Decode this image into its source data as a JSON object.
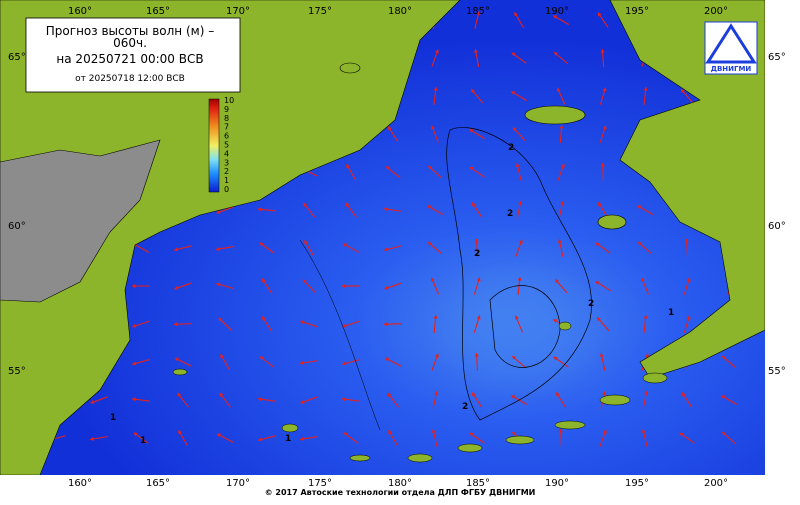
{
  "header": {
    "title": "Прогноз высоты волн (м) –",
    "title_cont": "060ч.",
    "valid": "на 20250721 00:00 ВСВ",
    "issued": "от 20250718 12:00 ВСВ"
  },
  "logo": {
    "text": "ДВНИГМИ"
  },
  "colorbar": {
    "labels": [
      10,
      9,
      8,
      7,
      6,
      5,
      4,
      3,
      2,
      1,
      0
    ]
  },
  "axes": {
    "lon_top": [
      "160°",
      "165°",
      "170°",
      "175°",
      "180°",
      "185°",
      "190°",
      "195°",
      "200°"
    ],
    "lon_bottom": [
      "160°",
      "165°",
      "170°",
      "175°",
      "180°",
      "185°",
      "190°",
      "195°",
      "200°"
    ],
    "lat_left": [
      "65°",
      "60°",
      "55°"
    ],
    "lat_right": [
      "65°",
      "60°",
      "55°"
    ]
  },
  "contour_labels": [
    "2",
    "2",
    "2",
    "2",
    "2",
    "1",
    "1",
    "1",
    "1"
  ],
  "footer": "© 2017 Автоские технологии отдела ДЛП ФГБУ ДВНИГМИ"
}
